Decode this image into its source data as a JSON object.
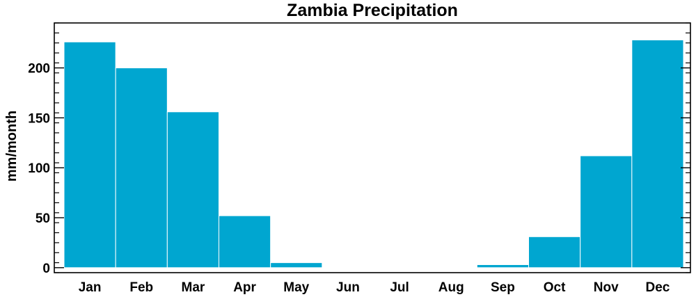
{
  "chart_data": {
    "type": "bar",
    "title": "Zambia Precipitation",
    "xlabel": "",
    "ylabel": "mm/month",
    "categories": [
      "Jan",
      "Feb",
      "Mar",
      "Apr",
      "May",
      "Jun",
      "Jul",
      "Aug",
      "Sep",
      "Oct",
      "Nov",
      "Dec"
    ],
    "values": [
      226,
      200,
      156,
      52,
      5,
      0,
      0,
      0,
      3,
      31,
      112,
      228
    ],
    "ylim": [
      -5,
      245
    ],
    "yticks": [
      0,
      50,
      100,
      150,
      200
    ],
    "bar_color": "#00a6d0",
    "grid": false
  }
}
